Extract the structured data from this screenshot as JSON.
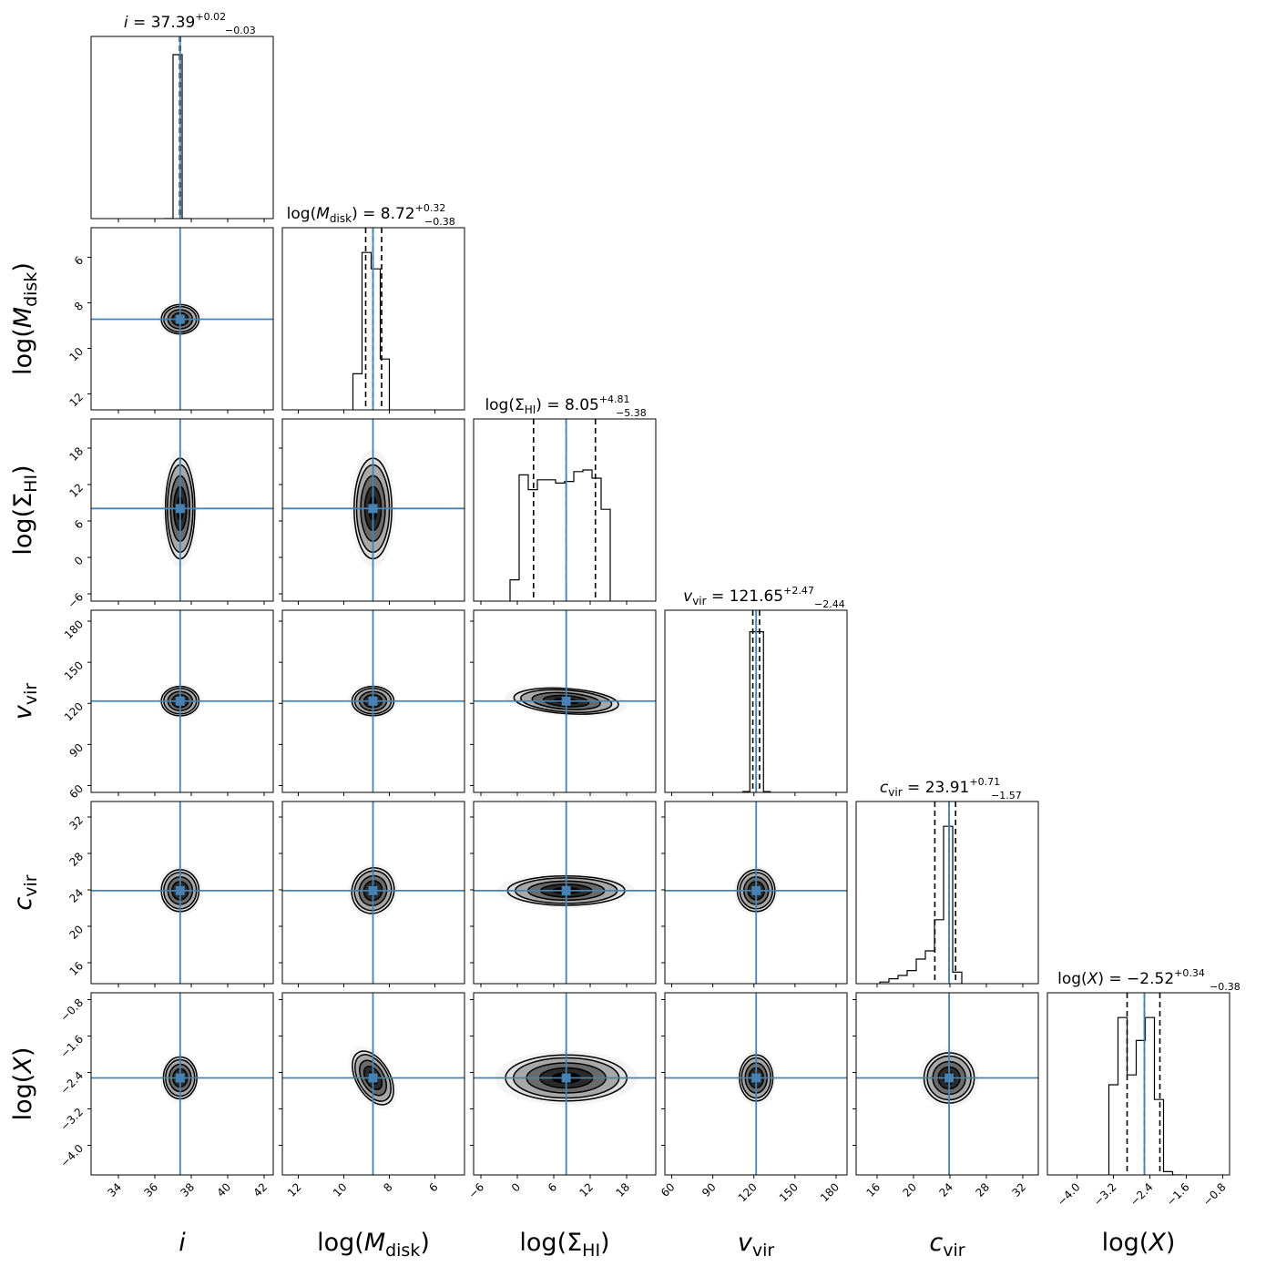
{
  "chart_data": {
    "type": "corner",
    "title": "",
    "truth_color": "#4682b4",
    "params": [
      {
        "key": "i",
        "label": "i",
        "label_html": "<tspan font-style='italic'>i</tspan>",
        "median": 37.39,
        "plus": 0.02,
        "minus": 0.03,
        "title": "i = 37.39",
        "range": [
          32.5,
          42.5
        ],
        "ticks": [
          34,
          36,
          38,
          40,
          42
        ],
        "truth": 37.39,
        "hist": {
          "edges": [
            36.5,
            37.0,
            37.5,
            38.0
          ],
          "counts": [
            0,
            1.0,
            0
          ]
        }
      },
      {
        "key": "logMdisk",
        "label": "log(M_disk)",
        "median": 8.72,
        "plus": 0.32,
        "minus": 0.38,
        "title": "log(M_disk) = 8.72",
        "range": [
          12.7,
          4.7
        ],
        "ticks": [
          12,
          10,
          8,
          6
        ],
        "truth": 8.72,
        "hist": {
          "edges": [
            9.6,
            9.2,
            8.8,
            8.4,
            8.0
          ],
          "counts": [
            0.22,
            0.96,
            0.86,
            0.31
          ]
        }
      },
      {
        "key": "logSigmaHI",
        "label": "log(Σ_HI)",
        "median": 8.05,
        "plus": 4.81,
        "minus": 5.38,
        "title": "log(Σ_HI) = 8.05",
        "range": [
          -7.2,
          22.8
        ],
        "ticks": [
          -6,
          0,
          6,
          12,
          18
        ],
        "truth": 8.05,
        "hist": {
          "edges": [
            -1.2,
            0.3,
            1.8,
            3.3,
            4.8,
            6.3,
            7.8,
            9.3,
            10.8,
            12.3,
            13.8,
            15.3
          ],
          "counts": [
            0.13,
            0.77,
            0.68,
            0.74,
            0.74,
            0.72,
            0.73,
            0.79,
            0.8,
            0.75,
            0.56,
            0.0
          ]
        }
      },
      {
        "key": "vvir",
        "label": "v_vir",
        "median": 121.65,
        "plus": 2.47,
        "minus": 2.44,
        "title": "v_vir = 121.65",
        "range": [
          55,
          188
        ],
        "ticks": [
          60,
          90,
          120,
          150,
          180
        ],
        "truth": 121.65,
        "hist": {
          "edges": [
            112,
            117,
            122,
            127,
            132
          ],
          "counts": [
            0.005,
            0.98,
            0.98,
            0.005
          ]
        }
      },
      {
        "key": "cvir",
        "label": "c_vir",
        "median": 23.91,
        "plus": 0.71,
        "minus": 1.57,
        "title": "c_vir = 23.91",
        "range": [
          13.7,
          33.7
        ],
        "ticks": [
          16,
          20,
          24,
          28,
          32
        ],
        "truth": 23.91,
        "hist": {
          "edges": [
            16.3,
            17.3,
            18.3,
            19.3,
            20.3,
            21.3,
            22.3,
            23.3,
            24.3,
            25.3
          ],
          "counts": [
            0.01,
            0.03,
            0.05,
            0.08,
            0.15,
            0.2,
            0.39,
            0.96,
            0.07
          ]
        }
      },
      {
        "key": "logX",
        "label": "log(X)",
        "median": -2.52,
        "plus": 0.34,
        "minus": 0.38,
        "title": "log(X) = -2.52",
        "range": [
          -4.65,
          -0.65
        ],
        "ticks": [
          -4.0,
          -3.2,
          -2.4,
          -1.6,
          -0.8
        ],
        "truth": -2.52,
        "hist": {
          "edges": [
            -3.3,
            -3.1,
            -2.9,
            -2.7,
            -2.5,
            -2.3,
            -2.1,
            -1.9,
            -1.7
          ],
          "counts": [
            0.55,
            0.96,
            0.61,
            0.82,
            0.96,
            0.46,
            0.02,
            0.0
          ]
        }
      }
    ],
    "contour_shapes": [
      {
        "row": 1,
        "col": 0,
        "sx": 0.09,
        "sy": 0.07,
        "rot": 0,
        "skew": 0
      },
      {
        "row": 2,
        "col": 0,
        "sx": 0.07,
        "sy": 0.24,
        "rot": 0,
        "skew": 0
      },
      {
        "row": 2,
        "col": 1,
        "sx": 0.09,
        "sy": 0.24,
        "rot": 0,
        "skew": 0
      },
      {
        "row": 3,
        "col": 0,
        "sx": 0.09,
        "sy": 0.07,
        "rot": 0,
        "skew": 0
      },
      {
        "row": 3,
        "col": 1,
        "sx": 0.1,
        "sy": 0.07,
        "rot": 0,
        "skew": 0
      },
      {
        "row": 3,
        "col": 2,
        "sx": 0.25,
        "sy": 0.06,
        "rot": 4,
        "skew": 0
      },
      {
        "row": 4,
        "col": 0,
        "sx": 0.09,
        "sy": 0.1,
        "rot": 0,
        "skew": 0.2
      },
      {
        "row": 4,
        "col": 1,
        "sx": 0.1,
        "sy": 0.11,
        "rot": 20,
        "skew": 0.3
      },
      {
        "row": 4,
        "col": 2,
        "sx": 0.28,
        "sy": 0.07,
        "rot": 0,
        "skew": 0
      },
      {
        "row": 4,
        "col": 3,
        "sx": 0.09,
        "sy": 0.1,
        "rot": 0,
        "skew": 0.2
      },
      {
        "row": 5,
        "col": 0,
        "sx": 0.08,
        "sy": 0.1,
        "rot": 0,
        "skew": 0
      },
      {
        "row": 5,
        "col": 1,
        "sx": 0.08,
        "sy": 0.14,
        "rot": -30,
        "skew": 0
      },
      {
        "row": 5,
        "col": 2,
        "sx": 0.29,
        "sy": 0.11,
        "rot": 0,
        "skew": 0
      },
      {
        "row": 5,
        "col": 3,
        "sx": 0.08,
        "sy": 0.11,
        "rot": 0,
        "skew": 0
      },
      {
        "row": 5,
        "col": 4,
        "sx": 0.12,
        "sy": 0.12,
        "rot": -40,
        "skew": 0.3
      }
    ],
    "titles": [
      {
        "base": "i = 37.39",
        "sup": "+0.02",
        "sub": "−0.03"
      },
      {
        "base": "log(M",
        "subscript": "disk",
        "tail": ") = 8.72",
        "sup": "+0.32",
        "sub": "−0.38"
      },
      {
        "base": "log(Σ",
        "subscript": "HI",
        "tail": ") = 8.05",
        "sup": "+4.81",
        "sub": "−5.38"
      },
      {
        "base": "v",
        "subscript": "vir",
        "tail": " = 121.65",
        "sup": "+2.47",
        "sub": "−2.44"
      },
      {
        "base": "c",
        "subscript": "vir",
        "tail": " = 23.91",
        "sup": "+0.71",
        "sub": "−1.57"
      },
      {
        "base": "log(X) = −2.52",
        "sup": "+0.34",
        "sub": "−0.38"
      }
    ],
    "axis_labels": [
      {
        "base": "i",
        "italic": true,
        "subscript": ""
      },
      {
        "base": "log(",
        "ital": "M",
        "subscript": "disk",
        "tail": ")"
      },
      {
        "base": "log(Σ",
        "subscript": "HI",
        "tail": ")"
      },
      {
        "base": "",
        "ital": "v",
        "subscript": "vir",
        "tail": ""
      },
      {
        "base": "",
        "ital": "c",
        "subscript": "vir",
        "tail": ""
      },
      {
        "base": "log(",
        "ital": "X",
        "subscript": "",
        "tail": ")"
      }
    ],
    "tick_labels": [
      [
        "34",
        "36",
        "38",
        "40",
        "42"
      ],
      [
        "12",
        "10",
        "8",
        "6"
      ],
      [
        "−6",
        "0",
        "6",
        "12",
        "18"
      ],
      [
        "60",
        "90",
        "120",
        "150",
        "180"
      ],
      [
        "16",
        "20",
        "24",
        "28",
        "32"
      ],
      [
        "−4.0",
        "−3.2",
        "−2.4",
        "−1.6",
        "−0.8"
      ]
    ],
    "ylim_note": "y-axis tick labels on left column for rows 1-5 use same ticks as the parameter"
  }
}
